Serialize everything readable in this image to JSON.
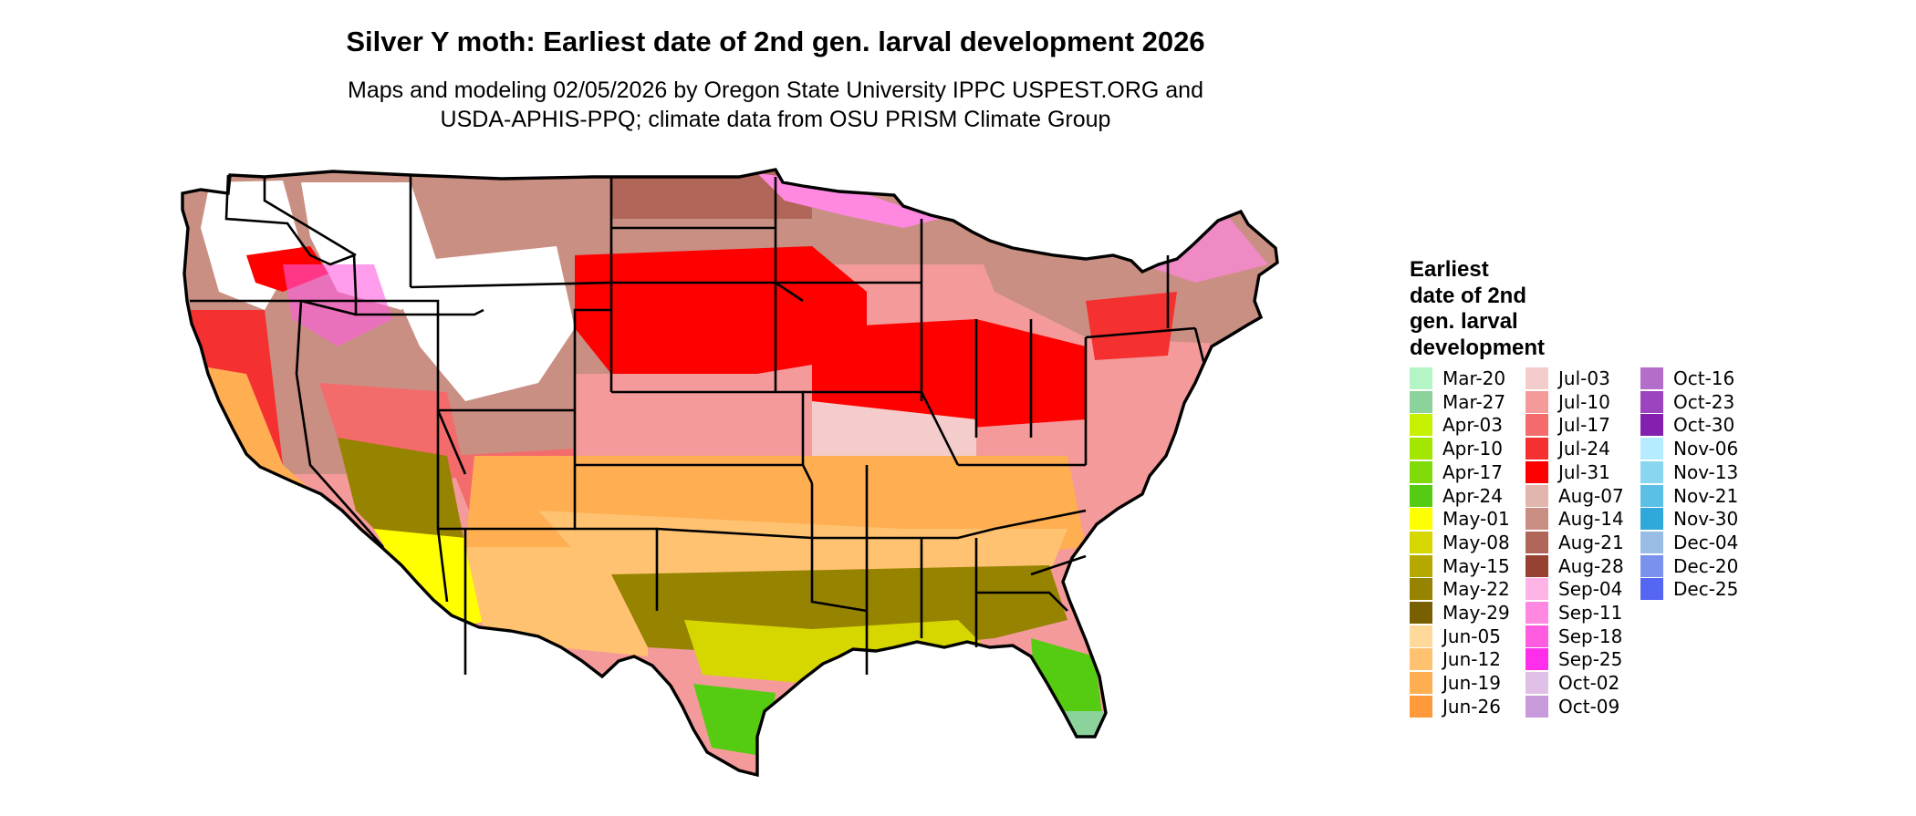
{
  "title": "Silver Y moth: Earliest date of 2nd gen. larval development 2026",
  "subtitle_lines": [
    "Maps and modeling 02/05/2026 by Oregon State University IPPC USPEST.ORG and",
    "USDA-APHIS-PPQ; climate data from OSU PRISM Climate Group"
  ],
  "legend": {
    "title_lines": [
      "Earliest",
      "date of 2nd",
      "gen. larval",
      "development"
    ],
    "columns": [
      [
        {
          "label": "Mar-20",
          "color": "#b3f5c4"
        },
        {
          "label": "Mar-27",
          "color": "#8bd39a"
        },
        {
          "label": "Apr-03",
          "color": "#c6f200"
        },
        {
          "label": "Apr-10",
          "color": "#a3e600"
        },
        {
          "label": "Apr-17",
          "color": "#7fdc0a"
        },
        {
          "label": "Apr-24",
          "color": "#55cc11"
        },
        {
          "label": "May-01",
          "color": "#ffff00"
        },
        {
          "label": "May-08",
          "color": "#d6d600"
        },
        {
          "label": "May-15",
          "color": "#b5a900"
        },
        {
          "label": "May-22",
          "color": "#968300"
        },
        {
          "label": "May-29",
          "color": "#786000"
        },
        {
          "label": "Jun-05",
          "color": "#ffd99a"
        },
        {
          "label": "Jun-12",
          "color": "#ffc270"
        },
        {
          "label": "Jun-19",
          "color": "#ffae52"
        },
        {
          "label": "Jun-26",
          "color": "#ff9a3c"
        }
      ],
      [
        {
          "label": "Jul-03",
          "color": "#f4cccc"
        },
        {
          "label": "Jul-10",
          "color": "#f49a9a"
        },
        {
          "label": "Jul-17",
          "color": "#f46b6b"
        },
        {
          "label": "Jul-24",
          "color": "#f43030"
        },
        {
          "label": "Jul-31",
          "color": "#ff0000"
        },
        {
          "label": "Aug-07",
          "color": "#e2b5ad"
        },
        {
          "label": "Aug-14",
          "color": "#c98f82"
        },
        {
          "label": "Aug-21",
          "color": "#b06658"
        },
        {
          "label": "Aug-28",
          "color": "#974133"
        },
        {
          "label": "Sep-04",
          "color": "#ffb3e6"
        },
        {
          "label": "Sep-11",
          "color": "#ff88e0"
        },
        {
          "label": "Sep-18",
          "color": "#ff5ce0"
        },
        {
          "label": "Sep-25",
          "color": "#ff2eea"
        },
        {
          "label": "Oct-02",
          "color": "#e0c0e6"
        },
        {
          "label": "Oct-09",
          "color": "#c99ad9"
        }
      ],
      [
        {
          "label": "Oct-16",
          "color": "#b36ecc"
        },
        {
          "label": "Oct-23",
          "color": "#9c44c0"
        },
        {
          "label": "Oct-30",
          "color": "#8420b0"
        },
        {
          "label": "Nov-06",
          "color": "#b5ecff"
        },
        {
          "label": "Nov-13",
          "color": "#88d6f0"
        },
        {
          "label": "Nov-21",
          "color": "#5cc0e6"
        },
        {
          "label": "Nov-30",
          "color": "#30a8dc"
        },
        {
          "label": "Dec-04",
          "color": "#9abde6"
        },
        {
          "label": "Dec-20",
          "color": "#7a92ec"
        },
        {
          "label": "Dec-25",
          "color": "#5566f2"
        }
      ]
    ]
  }
}
